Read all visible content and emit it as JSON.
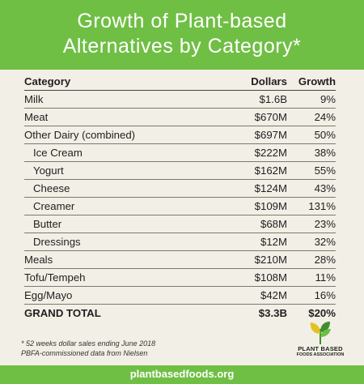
{
  "header": {
    "title_line1": "Growth of Plant-based",
    "title_line2": "Alternatives by Category*"
  },
  "table": {
    "columns": [
      "Category",
      "Dollars",
      "Growth"
    ],
    "rows": [
      {
        "category": "Milk",
        "dollars": "$1.6B",
        "growth": "9%",
        "indent": false
      },
      {
        "category": "Meat",
        "dollars": "$670M",
        "growth": "24%",
        "indent": false
      },
      {
        "category": "Other Dairy (combined)",
        "dollars": "$697M",
        "growth": "50%",
        "indent": false
      },
      {
        "category": "Ice Cream",
        "dollars": "$222M",
        "growth": "38%",
        "indent": true
      },
      {
        "category": "Yogurt",
        "dollars": "$162M",
        "growth": "55%",
        "indent": true
      },
      {
        "category": "Cheese",
        "dollars": "$124M",
        "growth": "43%",
        "indent": true
      },
      {
        "category": "Creamer",
        "dollars": "$109M",
        "growth": "131%",
        "indent": true
      },
      {
        "category": "Butter",
        "dollars": "$68M",
        "growth": "23%",
        "indent": true
      },
      {
        "category": "Dressings",
        "dollars": "$12M",
        "growth": "32%",
        "indent": true
      },
      {
        "category": "Meals",
        "dollars": "$210M",
        "growth": "28%",
        "indent": false
      },
      {
        "category": "Tofu/Tempeh",
        "dollars": "$108M",
        "growth": "11%",
        "indent": false
      },
      {
        "category": "Egg/Mayo",
        "dollars": "$42M",
        "growth": "16%",
        "indent": false
      }
    ],
    "total": {
      "category": "GRAND TOTAL",
      "dollars": "$3.3B",
      "growth": "$20%"
    }
  },
  "notes": {
    "line1": "* 52 weeks dollar sales ending June 2018",
    "line2": "PBFA-commissioned data from Nielsen"
  },
  "logo": {
    "icon": "leaf-sprout-icon",
    "line1": "PLANT BASED",
    "line2": "FOODS ASSOCIATION"
  },
  "footer": {
    "url": "plantbasedfoods.org"
  },
  "colors": {
    "brand_green": "#6fbf44",
    "background": "#f2efe6",
    "leaf_dark": "#3f8f2f",
    "leaf_yellow": "#e3c21f"
  }
}
